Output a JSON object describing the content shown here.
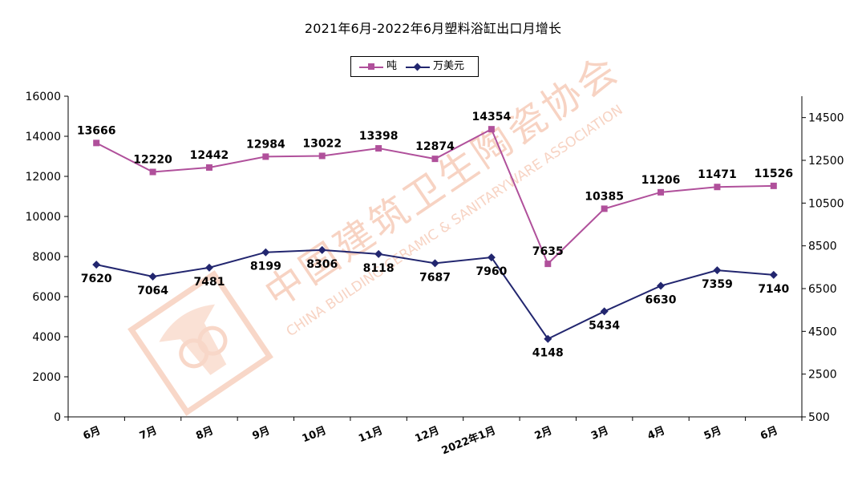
{
  "chart_data": {
    "type": "line",
    "title": "2021年6月-2022年6月塑料浴缸出口月增长",
    "categories": [
      "6月",
      "7月",
      "8月",
      "9月",
      "10月",
      "11月",
      "12月",
      "2022年1月",
      "2月",
      "3月",
      "4月",
      "5月",
      "6月"
    ],
    "series": [
      {
        "name": "吨",
        "axis": "left",
        "color": "#b0509b",
        "values": [
          13666,
          12220,
          12442,
          12984,
          13022,
          13398,
          12874,
          14354,
          7635,
          10385,
          11206,
          11471,
          11526
        ]
      },
      {
        "name": "万美元",
        "axis": "right",
        "color": "#22266f",
        "values": [
          7620,
          7064,
          7481,
          8199,
          8306,
          8118,
          7687,
          7960,
          4148,
          5434,
          6630,
          7359,
          7140
        ]
      }
    ],
    "y_left": {
      "min": 0,
      "max": 16000,
      "ticks": [
        0,
        2000,
        4000,
        6000,
        8000,
        10000,
        12000,
        14000,
        16000
      ]
    },
    "y_right": {
      "min": 500,
      "max": 15500,
      "ticks": [
        500,
        2500,
        4500,
        6500,
        8500,
        10500,
        12500,
        14500
      ]
    },
    "legend": "top-center",
    "grid": false
  },
  "watermark": {
    "cn": "中国建筑卫生陶瓷协会",
    "en": "CHINA BUILDING CERAMIC & SANITARYWARE ASSOCIATION"
  }
}
